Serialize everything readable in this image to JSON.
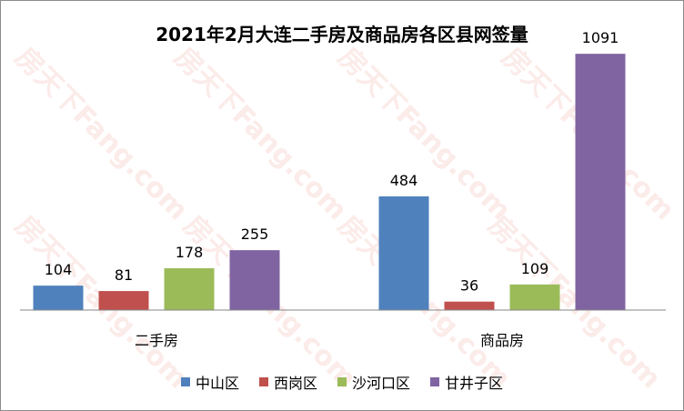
{
  "chart_data": {
    "type": "bar",
    "title": "2021年2月大连二手房及商品房各区县网签量",
    "categories": [
      "二手房",
      "商品房"
    ],
    "series": [
      {
        "name": "中山区",
        "values": [
          104,
          484
        ],
        "color": "#4f81bd"
      },
      {
        "name": "西岗区",
        "values": [
          81,
          36
        ],
        "color": "#c0504d"
      },
      {
        "name": "沙河口区",
        "values": [
          178,
          109
        ],
        "color": "#9bbb59"
      },
      {
        "name": "甘井子区",
        "values": [
          255,
          1091
        ],
        "color": "#8064a2"
      }
    ],
    "ylim": [
      0,
      1200
    ],
    "grid": false,
    "legend_position": "bottom",
    "data_labels": true
  },
  "watermark": "房天下Fang.com"
}
